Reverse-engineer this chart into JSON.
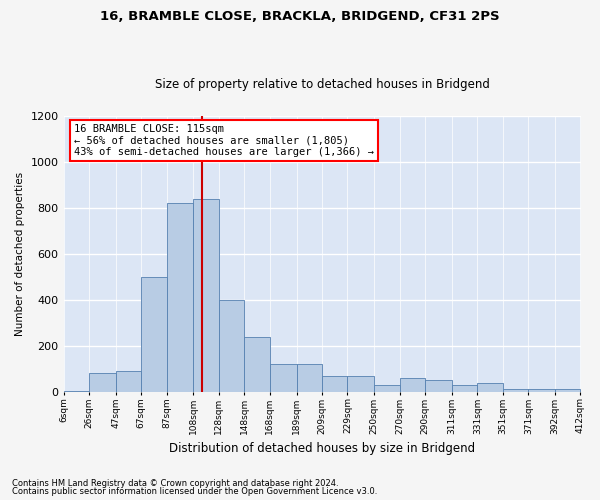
{
  "title": "16, BRAMBLE CLOSE, BRACKLA, BRIDGEND, CF31 2PS",
  "subtitle": "Size of property relative to detached houses in Bridgend",
  "xlabel": "Distribution of detached houses by size in Bridgend",
  "ylabel": "Number of detached properties",
  "footnote1": "Contains HM Land Registry data © Crown copyright and database right 2024.",
  "footnote2": "Contains public sector information licensed under the Open Government Licence v3.0.",
  "annotation_line1": "16 BRAMBLE CLOSE: 115sqm",
  "annotation_line2": "← 56% of detached houses are smaller (1,805)",
  "annotation_line3": "43% of semi-detached houses are larger (1,366) →",
  "bar_color": "#b8cce4",
  "bar_edge_color": "#5580b0",
  "line_color": "#cc0000",
  "property_size": 115,
  "bin_edges": [
    6,
    26,
    47,
    67,
    87,
    108,
    128,
    148,
    168,
    189,
    209,
    229,
    250,
    270,
    290,
    311,
    331,
    351,
    371,
    392,
    412
  ],
  "bin_counts": [
    5,
    80,
    90,
    500,
    820,
    840,
    400,
    240,
    120,
    120,
    70,
    70,
    30,
    60,
    50,
    30,
    40,
    10,
    10,
    10
  ],
  "ylim": [
    0,
    1200
  ],
  "yticks": [
    0,
    200,
    400,
    600,
    800,
    1000,
    1200
  ],
  "background_color": "#dce6f5",
  "grid_color": "#ffffff",
  "fig_bg_color": "#f5f5f5"
}
